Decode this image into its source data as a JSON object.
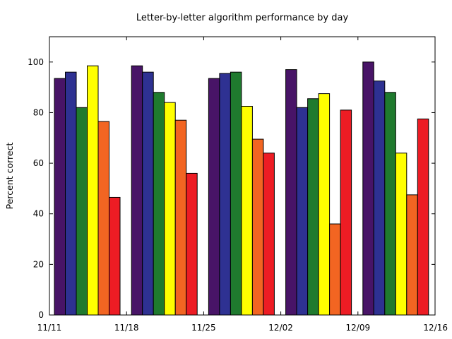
{
  "chart_data": {
    "type": "bar",
    "title": "Letter-by-letter algorithm performance by day",
    "ylabel": "Percent correct",
    "xlabel": "",
    "ylim": [
      0,
      110
    ],
    "yticks": [
      0,
      20,
      40,
      60,
      80,
      100
    ],
    "x_ticks": [
      "11/11",
      "11/18",
      "11/25",
      "12/02",
      "12/09",
      "12/16"
    ],
    "groups": [
      {
        "values": [
          93.5,
          96,
          82,
          98.5,
          76.5,
          46.5
        ]
      },
      {
        "values": [
          98.5,
          96,
          88,
          84,
          77,
          56
        ]
      },
      {
        "values": [
          93.5,
          95.5,
          96,
          82.5,
          69.5,
          64
        ]
      },
      {
        "values": [
          97,
          82,
          85.5,
          87.5,
          36,
          81
        ]
      },
      {
        "values": [
          100,
          92.5,
          88,
          64,
          47.5,
          77.5
        ]
      }
    ],
    "series_colors": [
      "#481467",
      "#2e3192",
      "#1f7a2e",
      "#ffff00",
      "#f26522",
      "#ed1c24"
    ],
    "grid": false
  }
}
